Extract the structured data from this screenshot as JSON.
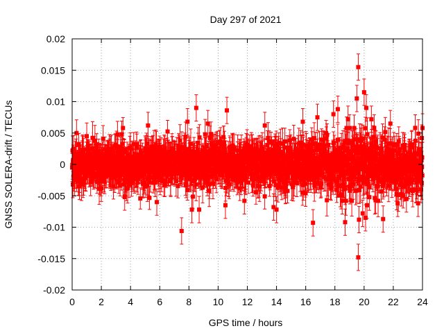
{
  "chart_data": {
    "type": "scatter",
    "title": "Day 297 of 2021",
    "xlabel": "GPS time / hours",
    "ylabel": "GNSS SOLERA-drift / TECUs",
    "xlim": [
      0,
      24
    ],
    "ylim": [
      -0.02,
      0.02
    ],
    "x_ticks": [
      0,
      2,
      4,
      6,
      8,
      10,
      12,
      14,
      16,
      18,
      20,
      22,
      24
    ],
    "y_ticks": [
      -0.02,
      -0.015,
      -0.01,
      -0.005,
      0,
      0.005,
      0.01,
      0.015,
      0.02
    ],
    "x_tick_labels": [
      "0",
      "2",
      "4",
      "6",
      "8",
      "10",
      "12",
      "14",
      "16",
      "18",
      "20",
      "22",
      "24"
    ],
    "y_tick_labels": [
      "-0.02",
      "-0.015",
      "-0.01",
      "-0.005",
      "0",
      "0.005",
      "0.01",
      "0.015",
      "0.02"
    ],
    "grid": true,
    "series": [
      {
        "color": "#ff0000",
        "marker": "square",
        "error_bars": true,
        "typical_error": 0.002,
        "points": [
          [
            0.05,
            -0.0032
          ],
          [
            0.1,
            0.0025
          ],
          [
            0.3,
            0.005
          ],
          [
            0.5,
            -0.0035
          ],
          [
            1.0,
            0.0045
          ],
          [
            2.0,
            -0.0038
          ],
          [
            3.4,
            0.0048
          ],
          [
            3.6,
            -0.0052
          ],
          [
            5.2,
            0.0062
          ],
          [
            5.8,
            -0.006
          ],
          [
            7.5,
            -0.0106
          ],
          [
            7.9,
            0.0068
          ],
          [
            8.2,
            -0.0072
          ],
          [
            8.5,
            0.009
          ],
          [
            8.7,
            -0.0072
          ],
          [
            9.3,
            0.0065
          ],
          [
            10.5,
            -0.0065
          ],
          [
            10.6,
            0.0086
          ],
          [
            11.8,
            -0.0058
          ],
          [
            13.2,
            0.0062
          ],
          [
            13.8,
            -0.0068
          ],
          [
            14.0,
            -0.0072
          ],
          [
            15.8,
            0.0068
          ],
          [
            16.5,
            -0.0093
          ],
          [
            16.8,
            0.0075
          ],
          [
            17.9,
            0.008
          ],
          [
            18.2,
            0.0088
          ],
          [
            18.5,
            -0.0058
          ],
          [
            18.7,
            -0.0092
          ],
          [
            18.9,
            0.0072
          ],
          [
            19.5,
            0.0105
          ],
          [
            19.6,
            0.0155
          ],
          [
            19.65,
            -0.0088
          ],
          [
            19.6,
            -0.0148
          ],
          [
            19.9,
            -0.0078
          ],
          [
            20.0,
            0.0115
          ],
          [
            20.1,
            -0.0085
          ],
          [
            20.15,
            0.009
          ],
          [
            20.2,
            -0.0065
          ],
          [
            20.5,
            0.0072
          ],
          [
            21.3,
            -0.0087
          ],
          [
            21.8,
            0.0065
          ],
          [
            22.3,
            -0.0062
          ],
          [
            22.9,
            -0.0055
          ],
          [
            23.5,
            0.0058
          ],
          [
            23.7,
            -0.0062
          ],
          [
            23.9,
            -0.004
          ],
          [
            23.95,
            0.0042
          ]
        ],
        "bulk_band": {
          "description_ranges": [
            {
              "x_from": 0,
              "x_to": 7,
              "sigma": 0.0016
            },
            {
              "x_from": 7,
              "x_to": 14,
              "sigma": 0.0018
            },
            {
              "x_from": 14,
              "x_to": 18,
              "sigma": 0.0019
            },
            {
              "x_from": 18,
              "x_to": 21,
              "sigma": 0.0024
            },
            {
              "x_from": 21,
              "x_to": 24,
              "sigma": 0.0019
            }
          ],
          "count": 1800
        }
      }
    ]
  }
}
